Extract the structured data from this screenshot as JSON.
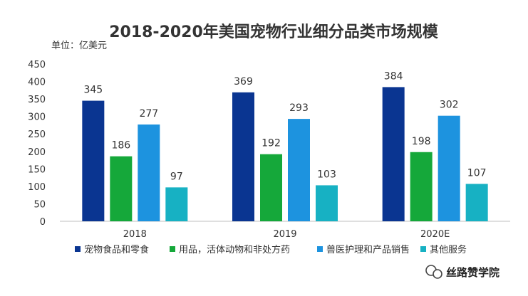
{
  "chart_data": {
    "type": "bar",
    "title": "2018-2020年美国宠物行业细分品类市场规模",
    "unit_label": "单位：亿美元",
    "categories": [
      "2018",
      "2019",
      "2020E"
    ],
    "series": [
      {
        "name": "宠物食品和零食",
        "color": "#0a3591",
        "values": [
          345,
          369,
          384
        ]
      },
      {
        "name": "用品，活体动物和非处方药",
        "color": "#15a83a",
        "values": [
          186,
          192,
          198
        ]
      },
      {
        "name": "兽医护理和产品销售",
        "color": "#1d93df",
        "values": [
          277,
          293,
          302
        ]
      },
      {
        "name": "其他服务",
        "color": "#17b1c3",
        "values": [
          97,
          103,
          107
        ]
      }
    ],
    "yticks": [
      0,
      50,
      100,
      150,
      200,
      250,
      300,
      350,
      400,
      450
    ],
    "ylim": [
      0,
      450
    ],
    "xlabel": "",
    "ylabel": "",
    "grid": false,
    "legend_position": "bottom"
  },
  "watermark": {
    "text": "丝路赞学院",
    "icon": "wechat-logo-icon"
  }
}
